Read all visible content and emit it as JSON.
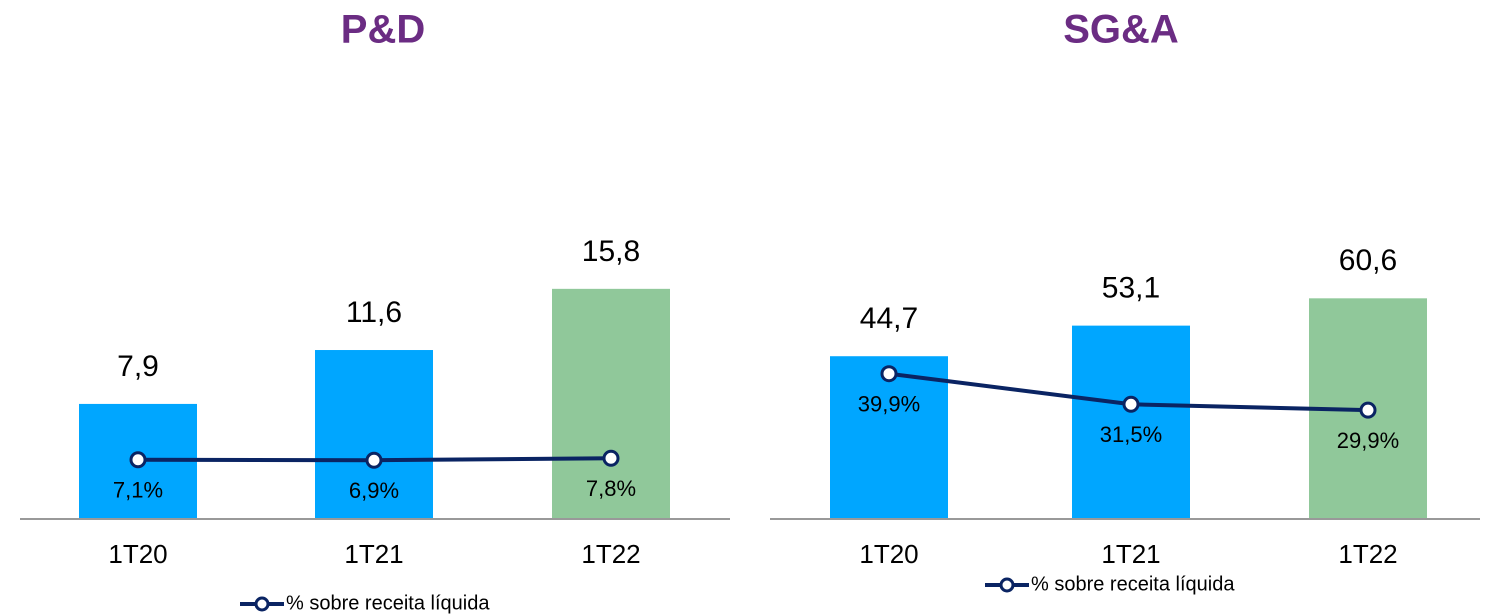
{
  "chart_data": [
    {
      "type": "bar",
      "title": "P&D",
      "categories": [
        "1T20",
        "1T21",
        "1T22"
      ],
      "values": [
        7.9,
        11.6,
        15.8
      ],
      "value_labels": [
        "7,9",
        "11,6",
        "15,8"
      ],
      "colors": [
        "#00a6ff",
        "#00a6ff",
        "#90c89a"
      ],
      "ylim": [
        0,
        30
      ],
      "y2lim": [
        -20,
        180
      ],
      "series": [
        {
          "name": "% sobre receita líquida",
          "color": "#0a2463",
          "axis": "y2",
          "values": [
            7.1,
            6.9,
            7.8
          ],
          "value_labels": [
            "7,1%",
            "6,9%",
            "7,8%"
          ]
        }
      ]
    },
    {
      "type": "bar",
      "title": "SG&A",
      "categories": [
        "1T20",
        "1T21",
        "1T22"
      ],
      "values": [
        44.7,
        53.1,
        60.6
      ],
      "value_labels": [
        "44,7",
        "53,1",
        "60,6"
      ],
      "colors": [
        "#00a6ff",
        "#00a6ff",
        "#90c89a"
      ],
      "ylim": [
        0,
        120
      ],
      "y2lim": [
        0,
        120
      ],
      "series": [
        {
          "name": "% sobre receita líquida",
          "color": "#0a2463",
          "axis": "y2",
          "values": [
            39.9,
            31.5,
            29.9
          ],
          "value_labels": [
            "39,9%",
            "31,5%",
            "29,9%"
          ]
        }
      ]
    }
  ]
}
